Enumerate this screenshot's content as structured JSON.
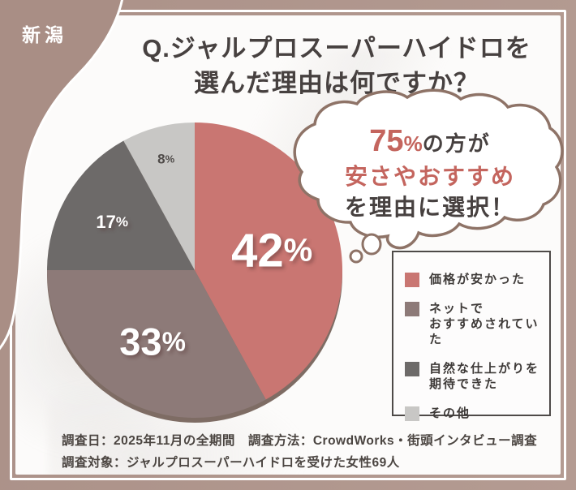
{
  "badge": {
    "label": "新潟"
  },
  "title": {
    "line1": "Q.ジャルプロスーパーハイドロを",
    "line2": "選んだ理由は何ですか？"
  },
  "bubble": {
    "highlight_pct": "75",
    "pct_sign": "%",
    "line1_rest": "の方が",
    "line2": "安さやおすすめ",
    "line3": "を理由に選択！"
  },
  "chart_data": {
    "type": "pie",
    "question": "Q.ジャルプロスーパーハイドロを選んだ理由は何ですか？",
    "direction": "clockwise",
    "start_angle": "12-oclock",
    "legend_position": "right",
    "slices": [
      {
        "label": "価格が安かった",
        "value": 42,
        "display": "42%",
        "color": "#c97672",
        "label_color": "#ffffff"
      },
      {
        "label": "ネットでおすすめされていた",
        "value": 33,
        "display": "33%",
        "color": "#8d7a78",
        "label_color": "#ffffff"
      },
      {
        "label": "自然な仕上がりを期待できた",
        "value": 17,
        "display": "17%",
        "color": "#6d6a69",
        "label_color": "#ffffff"
      },
      {
        "label": "その他",
        "value": 8,
        "display": "8%",
        "color": "#c8c7c5",
        "label_color": "#4e4a48"
      }
    ],
    "legend": [
      {
        "lines": [
          "価格が安かった",
          ""
        ]
      },
      {
        "lines": [
          "ネットで",
          "おすすめされていた"
        ]
      },
      {
        "lines": [
          "自然な仕上がりを",
          "期待できた"
        ]
      },
      {
        "lines": [
          "その他",
          ""
        ]
      }
    ],
    "callout_summary": "75%の方が安さやおすすめを理由に選択！"
  },
  "footer": {
    "line1": "調査日：2025年11月の全期間　調査方法：CrowdWorks・街頭インタビュー調査",
    "line2": "調査対象：ジャルプロスーパーハイドロを受けた女性69人"
  },
  "colors": {
    "outer": "#ab9188",
    "blob": "#a98e85",
    "accent": "#c4655e",
    "pie-red": "#c97672",
    "bubble-border": "#8e7367",
    "text-dark": "#474140",
    "legend-border": "#4e4a48",
    "rim": "#7e6c64"
  }
}
